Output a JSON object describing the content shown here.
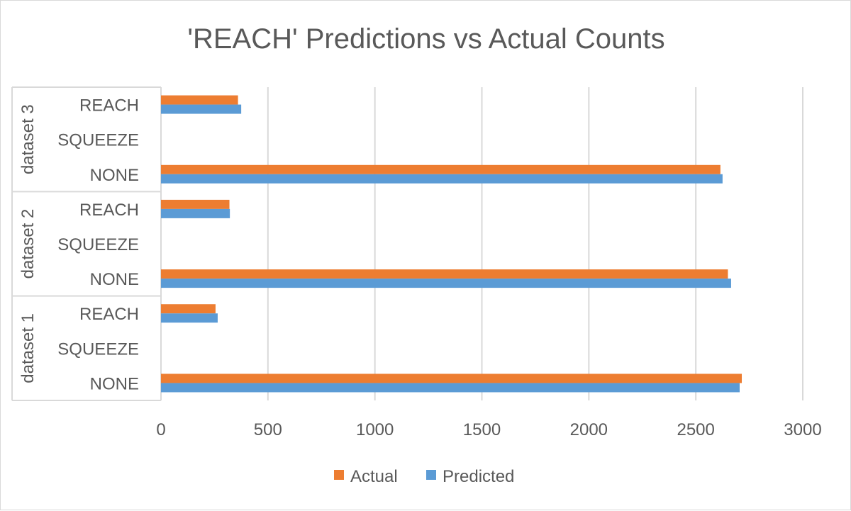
{
  "chart_data": {
    "type": "bar",
    "orientation": "horizontal",
    "title": "'REACH' Predictions vs Actual Counts",
    "xlim": [
      0,
      3000
    ],
    "x_ticks": [
      0,
      500,
      1000,
      1500,
      2000,
      2500,
      3000
    ],
    "grid": true,
    "legend_position": "bottom",
    "groups": [
      {
        "label": "dataset 3",
        "categories": [
          "REACH",
          "SQUEEZE",
          "NONE"
        ]
      },
      {
        "label": "dataset 2",
        "categories": [
          "REACH",
          "SQUEEZE",
          "NONE"
        ]
      },
      {
        "label": "dataset 1",
        "categories": [
          "REACH",
          "SQUEEZE",
          "NONE"
        ]
      }
    ],
    "series": [
      {
        "name": "Actual",
        "color": "#ed7d31",
        "values": [
          [
            360,
            0,
            2615
          ],
          [
            320,
            0,
            2650
          ],
          [
            255,
            0,
            2715
          ]
        ]
      },
      {
        "name": "Predicted",
        "color": "#5b9bd5",
        "values": [
          [
            375,
            0,
            2625
          ],
          [
            322,
            0,
            2665
          ],
          [
            265,
            0,
            2705
          ]
        ]
      }
    ]
  }
}
